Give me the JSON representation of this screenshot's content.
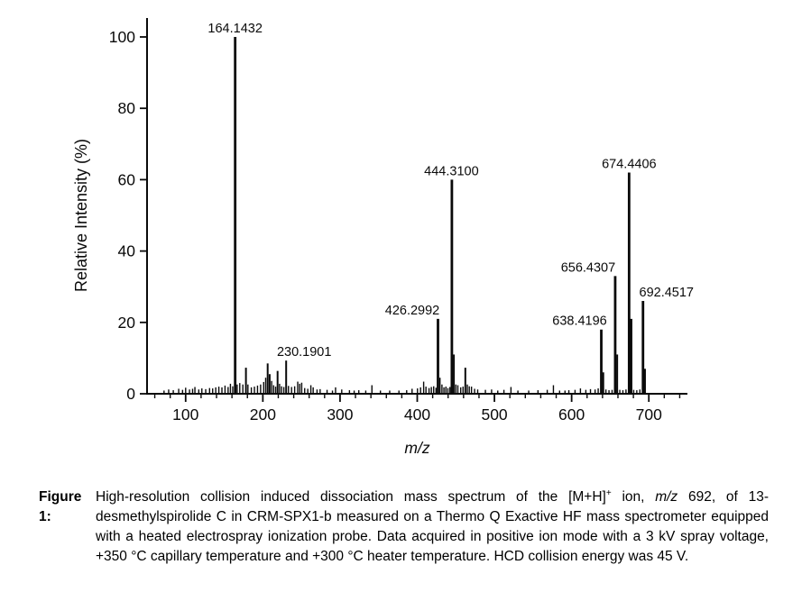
{
  "figure": {
    "caption_label": "Figure 1:",
    "caption_part1": "High-resolution collision induced dissociation mass spectrum of the [M+H]",
    "caption_sup": "+",
    "caption_part2": " ion, ",
    "caption_italic": "m/z",
    "caption_part3": " 692, of 13-desmethylspirolide C in CRM-SPX1-b measured on a Thermo Q Exactive HF mass spectrometer equipped with a heated electrospray ionization probe. Data acquired in positive ion mode with a 3 kV spray voltage, +350 °C capillary temperature and +300 °C heater temperature. HCD collision energy was 45 V."
  },
  "chart_data": {
    "type": "bar",
    "subtype": "mass-spectrum-stick",
    "title": "",
    "xlabel": "m/z",
    "ylabel": "Relative Intensity (%)",
    "xlim": [
      50,
      750
    ],
    "ylim": [
      0,
      100
    ],
    "x_major_ticks": [
      100,
      200,
      300,
      400,
      500,
      600,
      700
    ],
    "x_minor_tick_step": 20,
    "y_major_ticks": [
      0,
      20,
      40,
      60,
      80,
      100
    ],
    "grid": false,
    "legend": false,
    "line_color": "#0a0a0a",
    "annotated_peaks": [
      {
        "mz": 164.1432,
        "intensity": 100,
        "label": "164.1432",
        "label_dx": 0
      },
      {
        "mz": 230.1901,
        "intensity": 9.3,
        "label": "230.1901",
        "label_dx": 20
      },
      {
        "mz": 426.2992,
        "intensity": 21,
        "label": "426.2992",
        "label_dx": -28
      },
      {
        "mz": 444.31,
        "intensity": 60,
        "label": "444.3100",
        "label_dx": 0
      },
      {
        "mz": 638.4196,
        "intensity": 18,
        "label": "638.4196",
        "label_dx": -24
      },
      {
        "mz": 656.4307,
        "intensity": 33,
        "label": "656.4307",
        "label_dx": -30
      },
      {
        "mz": 674.4406,
        "intensity": 62,
        "label": "674.4406",
        "label_dx": 0
      },
      {
        "mz": 692.4517,
        "intensity": 26,
        "label": "692.4517",
        "label_dx": 26
      }
    ],
    "peaks": [
      [
        72,
        0.9
      ],
      [
        78,
        1.2
      ],
      [
        84,
        1.0
      ],
      [
        91,
        1.4
      ],
      [
        96,
        1.1
      ],
      [
        100,
        1.7
      ],
      [
        105,
        1.2
      ],
      [
        109,
        1.4
      ],
      [
        112,
        1.9
      ],
      [
        117,
        1.2
      ],
      [
        121,
        1.5
      ],
      [
        126,
        1.3
      ],
      [
        131,
        1.6
      ],
      [
        135,
        1.5
      ],
      [
        139,
        1.8
      ],
      [
        143,
        2.0
      ],
      [
        147,
        1.8
      ],
      [
        151,
        2.3
      ],
      [
        155,
        1.9
      ],
      [
        158,
        2.8
      ],
      [
        161,
        2.1
      ],
      [
        164.1432,
        100
      ],
      [
        166.1,
        2.6
      ],
      [
        170.1,
        3.0
      ],
      [
        174.1,
        2.6
      ],
      [
        178.1,
        7.3
      ],
      [
        180.1,
        2.6
      ],
      [
        185.1,
        1.8
      ],
      [
        189.1,
        2.0
      ],
      [
        193.1,
        2.3
      ],
      [
        197.1,
        2.6
      ],
      [
        201.1,
        3.3
      ],
      [
        203.1,
        4.5
      ],
      [
        204.7,
        8.5
      ],
      [
        206.2,
        5.5
      ],
      [
        207.7,
        3.6
      ],
      [
        210.2,
        2.4
      ],
      [
        213.2,
        2.0
      ],
      [
        218.2,
        6.4
      ],
      [
        220.2,
        2.8
      ],
      [
        224.2,
        2.1
      ],
      [
        227.2,
        1.9
      ],
      [
        230.1901,
        9.3
      ],
      [
        233.2,
        2.2
      ],
      [
        237.2,
        1.9
      ],
      [
        241.2,
        2.1
      ],
      [
        245.2,
        3.4
      ],
      [
        247.7,
        2.8
      ],
      [
        250.2,
        3.1
      ],
      [
        254.2,
        1.6
      ],
      [
        258.2,
        1.4
      ],
      [
        262.2,
        2.4
      ],
      [
        265.2,
        1.8
      ],
      [
        270.2,
        1.2
      ],
      [
        274.2,
        1.3
      ],
      [
        283.2,
        1.1
      ],
      [
        290.2,
        0.9
      ],
      [
        294.2,
        1.8
      ],
      [
        302.2,
        1.2
      ],
      [
        312.2,
        1.0
      ],
      [
        318.3,
        0.9
      ],
      [
        324.3,
        1.0
      ],
      [
        333.3,
        0.9
      ],
      [
        341.3,
        2.4
      ],
      [
        352.3,
        0.9
      ],
      [
        364.3,
        0.9
      ],
      [
        376.3,
        0.9
      ],
      [
        386.3,
        1.0
      ],
      [
        393.3,
        1.4
      ],
      [
        400.3,
        1.5
      ],
      [
        404.3,
        1.8
      ],
      [
        408.3,
        3.4
      ],
      [
        411.3,
        2.0
      ],
      [
        415.3,
        1.6
      ],
      [
        418.3,
        1.9
      ],
      [
        421.3,
        2.1
      ],
      [
        424.3,
        1.7
      ],
      [
        426.2992,
        21
      ],
      [
        427.3,
        4.5
      ],
      [
        430.3,
        2.6
      ],
      [
        433.3,
        1.8
      ],
      [
        436.3,
        2.0
      ],
      [
        439.3,
        1.6
      ],
      [
        442.3,
        1.9
      ],
      [
        444.31,
        60
      ],
      [
        445.31,
        11
      ],
      [
        448.3,
        2.6
      ],
      [
        452.3,
        2.4
      ],
      [
        456.3,
        1.8
      ],
      [
        459.3,
        2.0
      ],
      [
        462.3,
        7.3
      ],
      [
        463.3,
        2.6
      ],
      [
        466.3,
        2.1
      ],
      [
        470.3,
        2.0
      ],
      [
        474.3,
        1.4
      ],
      [
        478.3,
        1.2
      ],
      [
        488.3,
        1.1
      ],
      [
        496.3,
        1.2
      ],
      [
        504.3,
        0.9
      ],
      [
        512.3,
        1.1
      ],
      [
        521.4,
        1.9
      ],
      [
        530.4,
        0.9
      ],
      [
        544.4,
        0.9
      ],
      [
        556.4,
        1.0
      ],
      [
        568.4,
        1.1
      ],
      [
        576.4,
        2.4
      ],
      [
        584.4,
        0.9
      ],
      [
        591.4,
        0.9
      ],
      [
        596.4,
        1.0
      ],
      [
        604.4,
        1.1
      ],
      [
        611.4,
        1.5
      ],
      [
        618.4,
        1.1
      ],
      [
        624.4,
        1.3
      ],
      [
        630.4,
        1.2
      ],
      [
        634.4,
        1.5
      ],
      [
        638.4196,
        18
      ],
      [
        639.42,
        6.0
      ],
      [
        644.4,
        1.2
      ],
      [
        648.4,
        1.0
      ],
      [
        652.4,
        1.1
      ],
      [
        656.4307,
        33
      ],
      [
        657.43,
        11
      ],
      [
        662.4,
        1.1
      ],
      [
        666.4,
        1.0
      ],
      [
        670.4,
        1.2
      ],
      [
        674.4406,
        62
      ],
      [
        675.44,
        21
      ],
      [
        680.4,
        1.1
      ],
      [
        684.4,
        1.0
      ],
      [
        688.4,
        1.2
      ],
      [
        692.4517,
        26
      ],
      [
        693.45,
        7.0
      ]
    ]
  }
}
